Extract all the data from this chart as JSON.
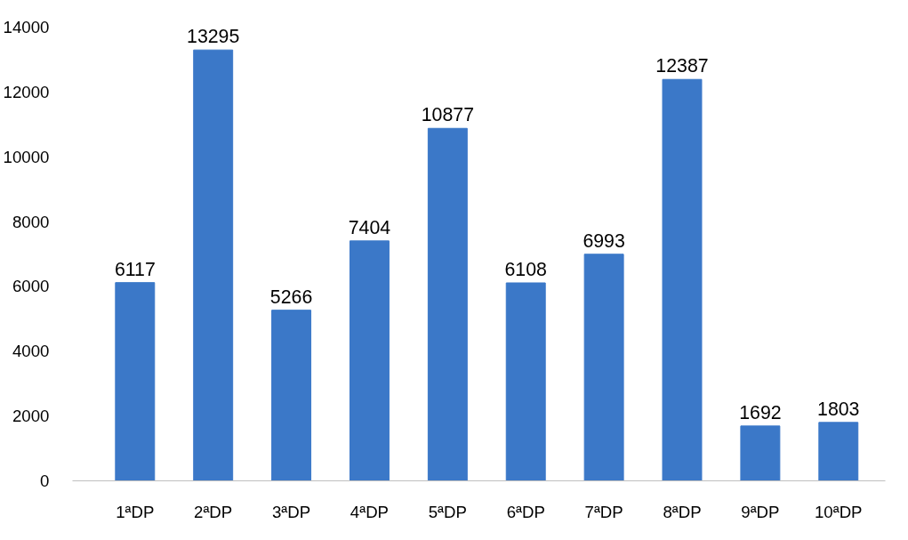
{
  "chart_data": {
    "type": "bar",
    "categories": [
      "1ªDP",
      "2ªDP",
      "3ªDP",
      "4ªDP",
      "5ªDP",
      "6ªDP",
      "7ªDP",
      "8ªDP",
      "9ªDP",
      "10ªDP"
    ],
    "values": [
      6117,
      13295,
      5266,
      7404,
      10877,
      6108,
      6993,
      12387,
      1692,
      1803
    ],
    "color": "#3b78c8",
    "ylim": [
      0,
      14000
    ],
    "yticks": [
      0,
      2000,
      4000,
      6000,
      8000,
      10000,
      12000,
      14000
    ],
    "data_labels": true,
    "grid": false
  }
}
